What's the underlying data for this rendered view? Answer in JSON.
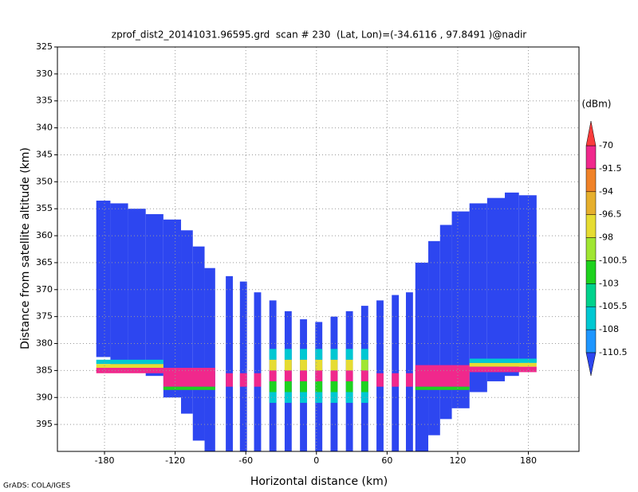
{
  "chart_data": {
    "type": "heatmap",
    "title": "zprof_dist2_20141031.96595.grd  scan # 230  (Lat, Lon)=(-34.6116 , 97.8491 )@nadir",
    "xlabel": "Horizontal distance (km)",
    "ylabel": "Distance from satellite altitude (km)",
    "footer": "GrADS: COLA/IGES",
    "xlim": [
      -220,
      223
    ],
    "xticks": [
      -180,
      -120,
      -60,
      0,
      60,
      120,
      180
    ],
    "ylim": [
      325,
      400
    ],
    "yticks": [
      325,
      330,
      335,
      340,
      345,
      350,
      355,
      360,
      365,
      370,
      375,
      380,
      385,
      390,
      395
    ],
    "grid": true,
    "colorbar": {
      "label": "(dBm)",
      "levels": [
        -110.5,
        -108,
        -105.5,
        -103,
        -100.5,
        -98,
        -96.5,
        -94,
        -91.5,
        -70
      ],
      "colors": [
        "#2d46f0",
        "#1e96ff",
        "#00c8d2",
        "#00d28c",
        "#1ed21e",
        "#a0e632",
        "#e6dc32",
        "#e6af2d",
        "#f08228",
        "#f0288c",
        "#fa3c3c"
      ]
    },
    "cells": [
      [
        -187,
        -175,
        353.5,
        382.5,
        -115
      ],
      [
        -175,
        -160,
        354,
        384,
        -115
      ],
      [
        -160,
        -145,
        355,
        385,
        -115
      ],
      [
        -145,
        -130,
        356,
        386,
        -115
      ],
      [
        -130,
        -115,
        357,
        390,
        -115
      ],
      [
        -115,
        -105,
        359,
        393,
        -115
      ],
      [
        -105,
        -95,
        362,
        398,
        -115
      ],
      [
        -95,
        -86,
        366,
        400,
        -115
      ],
      [
        -77,
        -71,
        367.5,
        400,
        -115
      ],
      [
        -65,
        -59,
        368.5,
        400,
        -115
      ],
      [
        -53,
        -47,
        370.5,
        400,
        -115
      ],
      [
        -40,
        -34,
        372,
        400,
        -115
      ],
      [
        -27,
        -21,
        374,
        400,
        -115
      ],
      [
        -14,
        -8,
        375.5,
        400,
        -115
      ],
      [
        -1,
        5,
        376,
        400,
        -115
      ],
      [
        12,
        18,
        375,
        400,
        -115
      ],
      [
        25,
        31,
        374,
        400,
        -115
      ],
      [
        38,
        44,
        373,
        400,
        -115
      ],
      [
        51,
        57,
        372,
        400,
        -115
      ],
      [
        64,
        70,
        371,
        400,
        -115
      ],
      [
        76,
        82,
        370.5,
        400,
        -115
      ],
      [
        84,
        95,
        365,
        400,
        -115
      ],
      [
        95,
        105,
        361,
        397,
        -115
      ],
      [
        105,
        115,
        358,
        394,
        -115
      ],
      [
        115,
        130,
        355.5,
        392,
        -115
      ],
      [
        130,
        145,
        354,
        389,
        -115
      ],
      [
        145,
        160,
        353,
        387,
        -115
      ],
      [
        160,
        172,
        352,
        386,
        -115
      ],
      [
        172,
        187,
        352.5,
        383.5,
        -115
      ],
      [
        -187,
        -130,
        383,
        383.8,
        -106
      ],
      [
        -187,
        -130,
        383.8,
        384.5,
        -98
      ],
      [
        -187,
        -130,
        384.5,
        385.5,
        -80
      ],
      [
        -130,
        -86,
        384.5,
        388,
        -82
      ],
      [
        -130,
        -86,
        388,
        388.6,
        -101
      ],
      [
        84,
        130,
        384,
        388,
        -82
      ],
      [
        84,
        130,
        388,
        388.6,
        -101
      ],
      [
        130,
        187,
        382.8,
        383.6,
        -106
      ],
      [
        130,
        187,
        383.6,
        384.3,
        -98
      ],
      [
        130,
        187,
        384.3,
        385.3,
        -80
      ],
      [
        -77,
        -71,
        385.5,
        388,
        -82
      ],
      [
        -65,
        -59,
        385.5,
        388,
        -82
      ],
      [
        -53,
        -47,
        385.5,
        388,
        -82
      ],
      [
        51,
        57,
        385.5,
        388,
        -82
      ],
      [
        64,
        70,
        385.5,
        388,
        -82
      ],
      [
        76,
        82,
        385.5,
        388,
        -82
      ],
      [
        -40,
        -34,
        381,
        383,
        -106
      ],
      [
        -40,
        -34,
        383,
        385,
        -98
      ],
      [
        -40,
        -34,
        385,
        387,
        -85
      ],
      [
        -40,
        -34,
        387,
        389,
        -102
      ],
      [
        -40,
        -34,
        389,
        391,
        -107
      ],
      [
        -27,
        -21,
        381,
        383,
        -106
      ],
      [
        -27,
        -21,
        383,
        385,
        -98
      ],
      [
        -27,
        -21,
        385,
        387,
        -85
      ],
      [
        -27,
        -21,
        387,
        389,
        -102
      ],
      [
        -27,
        -21,
        389,
        391,
        -107
      ],
      [
        -14,
        -8,
        381,
        383,
        -106
      ],
      [
        -14,
        -8,
        383,
        385,
        -98
      ],
      [
        -14,
        -8,
        385,
        387,
        -85
      ],
      [
        -14,
        -8,
        387,
        389,
        -102
      ],
      [
        -14,
        -8,
        389,
        391,
        -107
      ],
      [
        -1,
        5,
        381,
        383,
        -106
      ],
      [
        -1,
        5,
        383,
        385,
        -97
      ],
      [
        -1,
        5,
        385,
        387,
        -85
      ],
      [
        -1,
        5,
        387,
        389,
        -101
      ],
      [
        -1,
        5,
        389,
        391,
        -107
      ],
      [
        12,
        18,
        381,
        383,
        -106
      ],
      [
        12,
        18,
        383,
        385,
        -97
      ],
      [
        12,
        18,
        385,
        387,
        -85
      ],
      [
        12,
        18,
        387,
        389,
        -101
      ],
      [
        12,
        18,
        389,
        391,
        -107
      ],
      [
        25,
        31,
        381,
        383,
        -106
      ],
      [
        25,
        31,
        383,
        385,
        -98
      ],
      [
        25,
        31,
        385,
        387,
        -85
      ],
      [
        25,
        31,
        387,
        389,
        -102
      ],
      [
        25,
        31,
        389,
        391,
        -107
      ],
      [
        38,
        44,
        381,
        383,
        -106
      ],
      [
        38,
        44,
        383,
        385,
        -99
      ],
      [
        38,
        44,
        385,
        387,
        -85
      ],
      [
        38,
        44,
        387,
        389,
        -102
      ],
      [
        38,
        44,
        389,
        391,
        -107
      ]
    ]
  }
}
